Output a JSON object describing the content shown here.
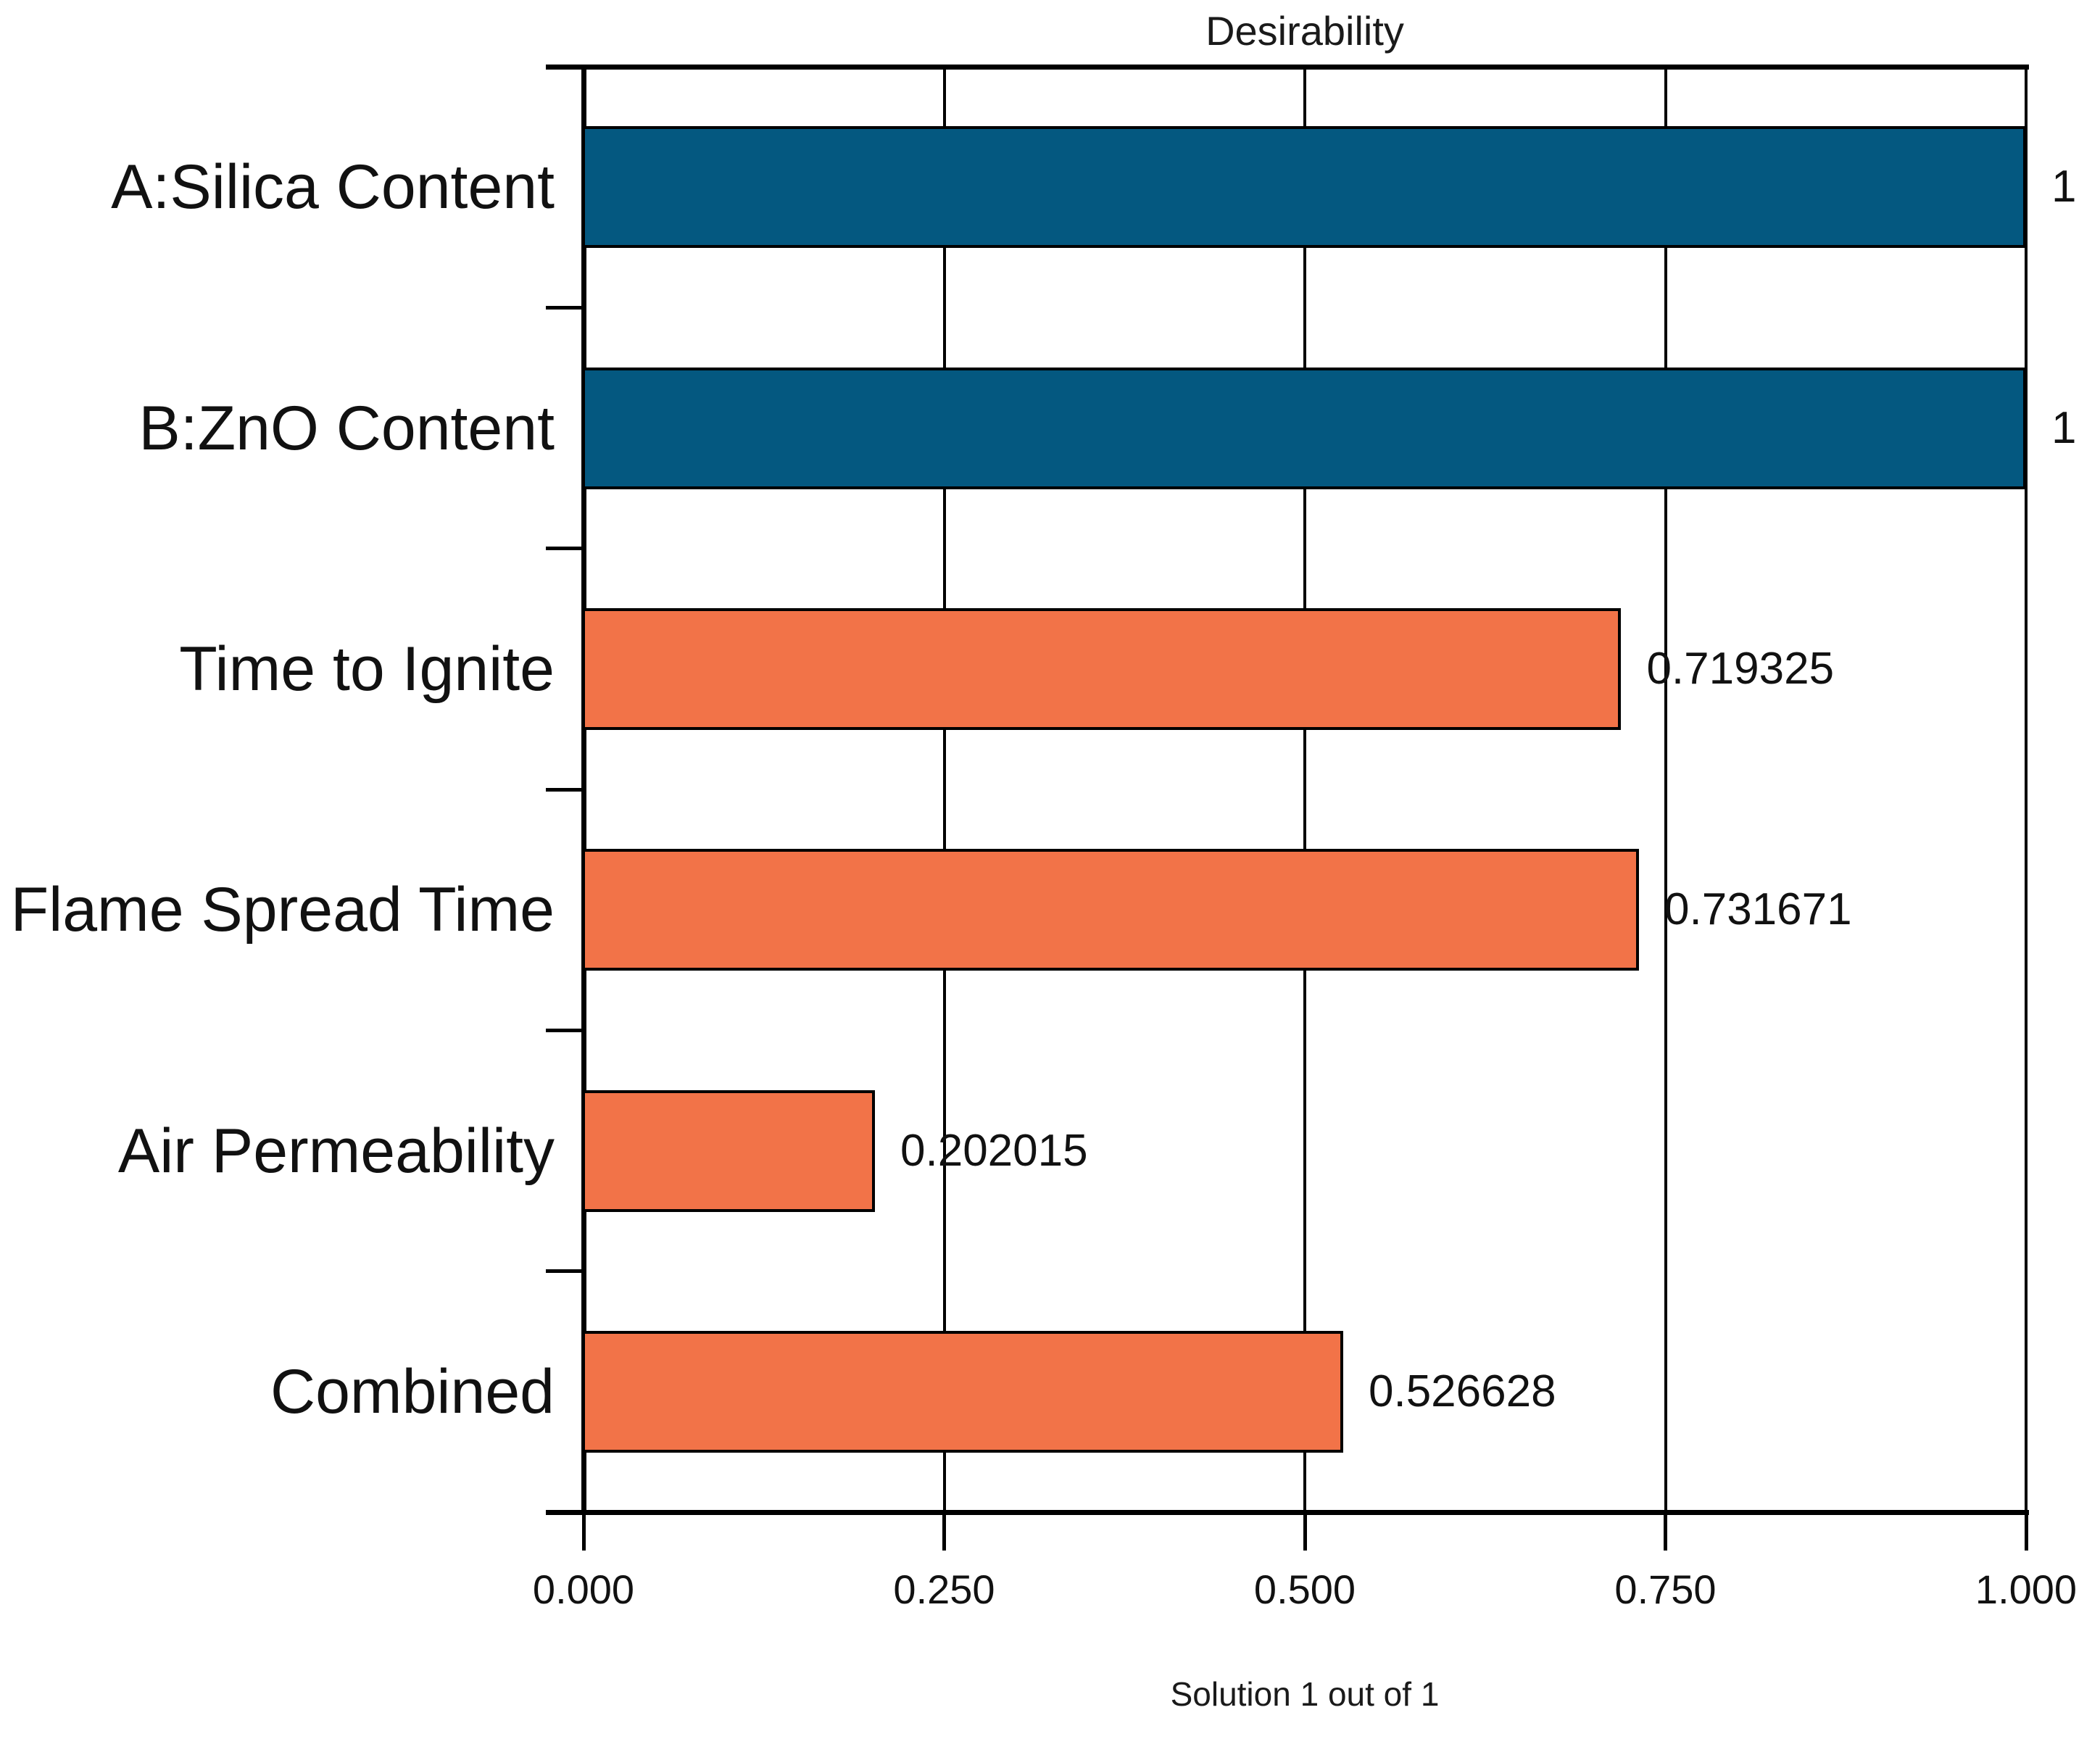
{
  "title": "Desirability",
  "caption": "Solution 1 out of 1",
  "colors": {
    "factor_bar": "#045880",
    "response_bar": "#F27348",
    "axis": "#000000",
    "text": "#111111",
    "background": "#FFFFFF"
  },
  "chart_data": {
    "type": "bar",
    "orientation": "horizontal",
    "title": "Desirability",
    "xlabel": "Solution 1 out of 1",
    "categories": [
      "A:Silica Content",
      "B:ZnO Content",
      "Time to Ignite",
      "Flame Spread Time",
      "Air Permeability",
      "Combined"
    ],
    "values": [
      1,
      1,
      0.719325,
      0.731671,
      0.202015,
      0.526628
    ],
    "value_labels": [
      "1",
      "1",
      "0.719325",
      "0.731671",
      "0.202015",
      "0.526628"
    ],
    "bar_colors": [
      "#045880",
      "#045880",
      "#F27348",
      "#F27348",
      "#F27348",
      "#F27348"
    ],
    "series_roles": [
      "factor",
      "factor",
      "response",
      "response",
      "response",
      "combined"
    ],
    "xlim": [
      0,
      1
    ],
    "x_ticks": [
      0.0,
      0.25,
      0.5,
      0.75,
      1.0
    ],
    "x_tick_labels": [
      "0.000",
      "0.250",
      "0.500",
      "0.750",
      "1.000"
    ],
    "grid": true,
    "legend": "none"
  }
}
